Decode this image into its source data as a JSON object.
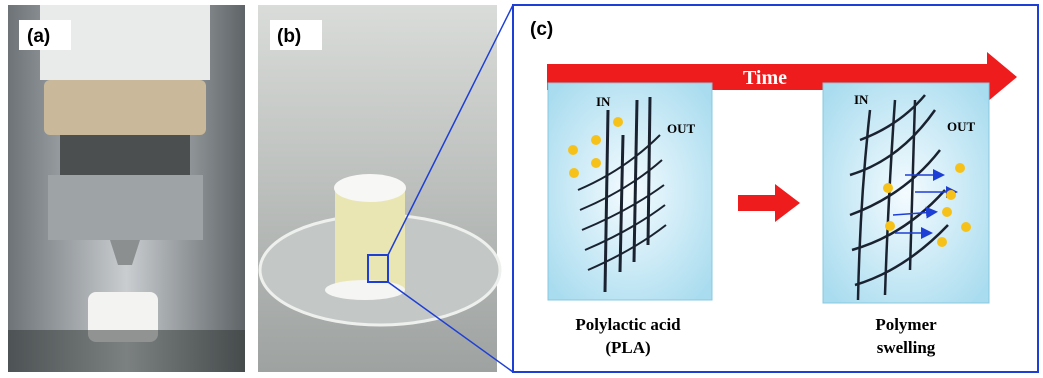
{
  "panels": {
    "a": {
      "label": "(a)"
    },
    "b": {
      "label": "(b)"
    },
    "c": {
      "label": "(c)",
      "arrow_label": "Time",
      "before": {
        "in": "IN",
        "out": "OUT",
        "caption": [
          "Polylactic acid",
          "(PLA)"
        ]
      },
      "after": {
        "in": "IN",
        "out": "OUT",
        "caption": [
          "Polymer",
          "swelling"
        ]
      }
    }
  }
}
